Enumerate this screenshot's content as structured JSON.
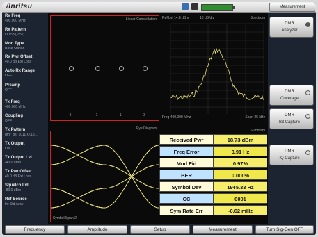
{
  "brand": "/Inritsu",
  "status_bar": {
    "measure_label": "Measurement"
  },
  "left_panel": [
    {
      "label": "Rx Freq",
      "value": "400.000 MHz"
    },
    {
      "label": "Rx Pattern",
      "value": "O.153 (V.52)"
    },
    {
      "label": "Mod Type",
      "value": "Base Station"
    },
    {
      "label": "Rx Pwr Offset",
      "value": "40.0 dB Ext Loss"
    },
    {
      "label": "Auto Rx Range",
      "value": "OFF"
    },
    {
      "label": "Preamp",
      "value": "OFF"
    },
    {
      "label": "Tx Freq",
      "value": "400.000 MHz"
    },
    {
      "label": "Coupling",
      "value": "OFF"
    },
    {
      "label": "Tx Pattern",
      "value": "dmr_bs_1011(O.15..."
    },
    {
      "label": "Tx Output",
      "value": "ON"
    },
    {
      "label": "Tx Output Lvl",
      "value": "-40.0 dBm"
    },
    {
      "label": "Tx Pwr Offset",
      "value": "40.0 dB Ext Loss"
    },
    {
      "label": "Squelch Lvl",
      "value": "-80.0 dBm"
    },
    {
      "label": "Ref Source",
      "value": "Int Std Accy"
    }
  ],
  "constellation": {
    "title": "Linear Constellation",
    "ticks": [
      "-3",
      "-1",
      "1",
      "3"
    ]
  },
  "spectrum": {
    "title": "Spectrum",
    "ref_level": "Ref Lvl 14.8 dBm",
    "scale": "10 dB/div",
    "freq": "Freq 400.000 MHz",
    "span": "Span 25 kHz",
    "mode": "DMR"
  },
  "eye_diagram": {
    "title": "Eye Diagram",
    "span_label": "Symbol Span 2"
  },
  "summary": {
    "title": "Summary",
    "rows": [
      {
        "label": "Received Pwr",
        "value": "18.73 dBm"
      },
      {
        "label": "Freq Error",
        "value": "0.91 Hz"
      },
      {
        "label": "Mod Fid",
        "value": "0.97%"
      },
      {
        "label": "BER",
        "value": "0.000%"
      },
      {
        "label": "Symbol Dev",
        "value": "1945.33 Hz"
      },
      {
        "label": "CC",
        "value": "0001"
      },
      {
        "label": "Sym Rate Err",
        "value": "-0.62 mHz"
      }
    ]
  },
  "soft_keys": [
    {
      "line1": "DMR",
      "line2": "Analyzer",
      "selected": true
    },
    {
      "line1": "DMR",
      "line2": "Coverage",
      "selected": false
    },
    {
      "line1": "DMR",
      "line2": "Bit Capture",
      "selected": false
    },
    {
      "line1": "DMR",
      "line2": "IQ Capture",
      "selected": false
    }
  ],
  "bottom_menu": [
    "Frequency",
    "Amplitude",
    "Setup",
    "Measurement",
    "Turn Sig-Gen OFF"
  ],
  "colors": {
    "summary_value_bg": "#f6ee6a",
    "summary_label_bg": "#fffbd8",
    "trace": "#e8e07a",
    "frame": "#cc2222"
  }
}
